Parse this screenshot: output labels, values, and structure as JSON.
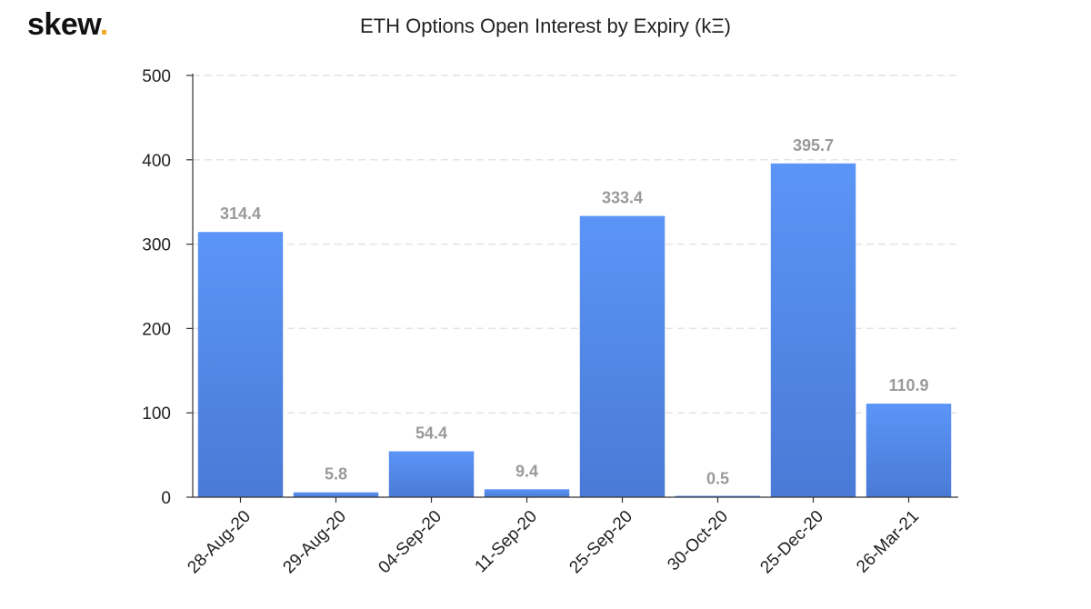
{
  "logo": {
    "text": "skew",
    "dot": "."
  },
  "chart_data": {
    "type": "bar",
    "title": "ETH Options Open Interest by Expiry (kΞ)",
    "xlabel": "",
    "ylabel": "",
    "categories": [
      "28-Aug-20",
      "29-Aug-20",
      "04-Sep-20",
      "11-Sep-20",
      "25-Sep-20",
      "30-Oct-20",
      "25-Dec-20",
      "26-Mar-21"
    ],
    "values": [
      314.4,
      5.8,
      54.4,
      9.4,
      333.4,
      0.5,
      395.7,
      110.9
    ],
    "data_labels": [
      "314.4",
      "5.8",
      "54.4",
      "9.4",
      "333.4",
      "0.5",
      "395.7",
      "110.9"
    ],
    "ylim": [
      0,
      500
    ],
    "yticks": [
      0,
      100,
      200,
      300,
      400,
      500
    ],
    "grid": true,
    "bar_color_top": "#5b95f7",
    "bar_color_bottom": "#4a7ad6"
  }
}
